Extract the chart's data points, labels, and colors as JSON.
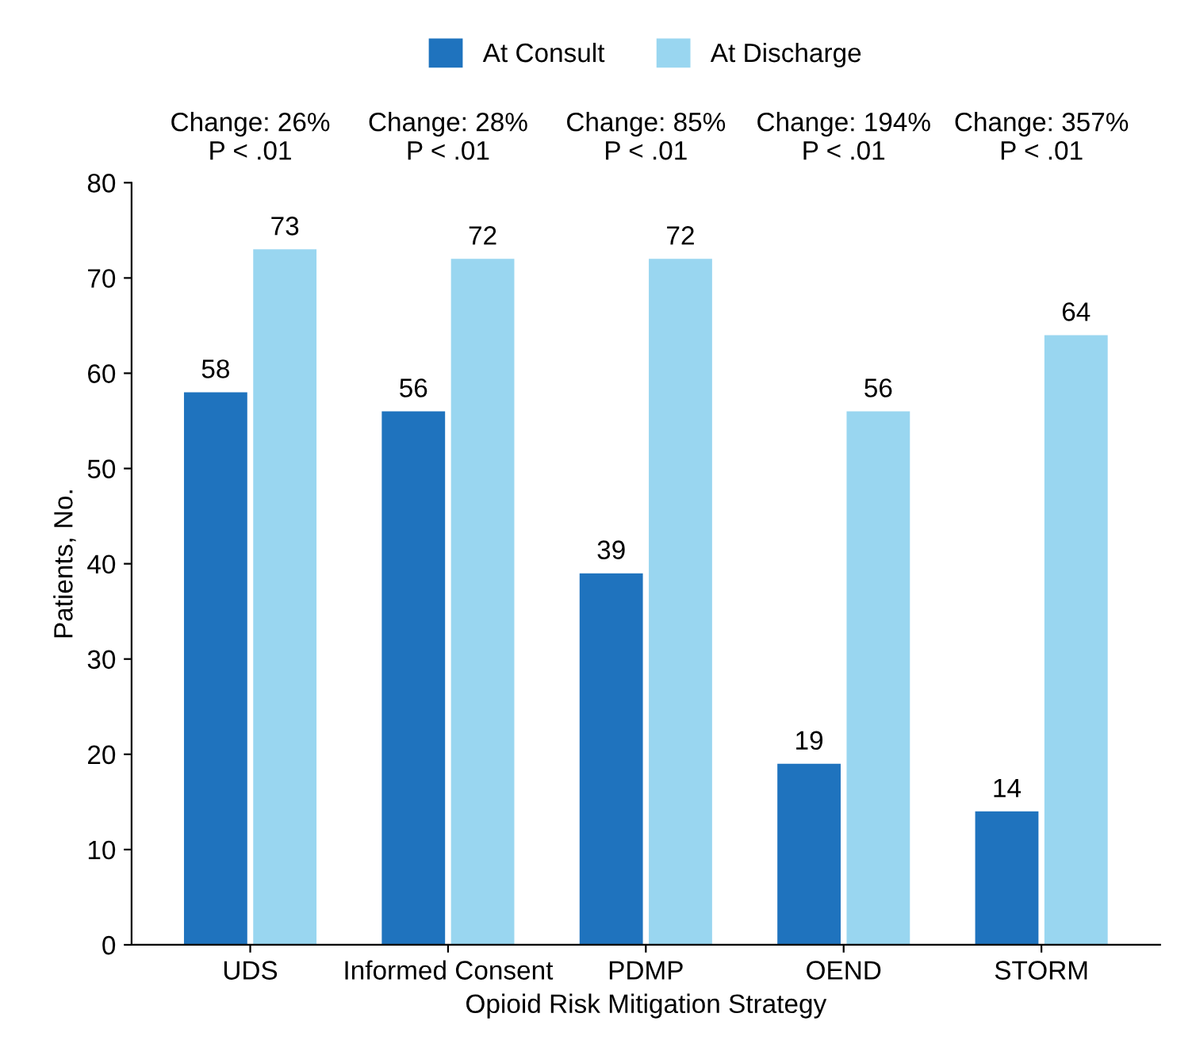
{
  "chart_data": {
    "type": "bar",
    "xlabel": "Opioid Risk Mitigation Strategy",
    "ylabel": "Patients, No.",
    "categories": [
      "UDS",
      "Informed Consent",
      "PDMP",
      "OEND",
      "STORM"
    ],
    "series": [
      {
        "name": "At Consult",
        "color": "#1f73be",
        "values": [
          58,
          56,
          39,
          19,
          14
        ]
      },
      {
        "name": "At Discharge",
        "color": "#99d6f0",
        "values": [
          73,
          72,
          72,
          56,
          64
        ]
      }
    ],
    "annotations": [
      "Change: 26%\nP < .01",
      "Change: 28%\nP < .01",
      "Change: 85%\nP < .01",
      "Change: 194%\nP < .01",
      "Change: 357%\nP < .01"
    ],
    "ylim": [
      0,
      80
    ],
    "yticks": [
      0,
      10,
      20,
      30,
      40,
      50,
      60,
      70,
      80
    ],
    "data_labels": true,
    "legend": "top",
    "grid": false
  }
}
